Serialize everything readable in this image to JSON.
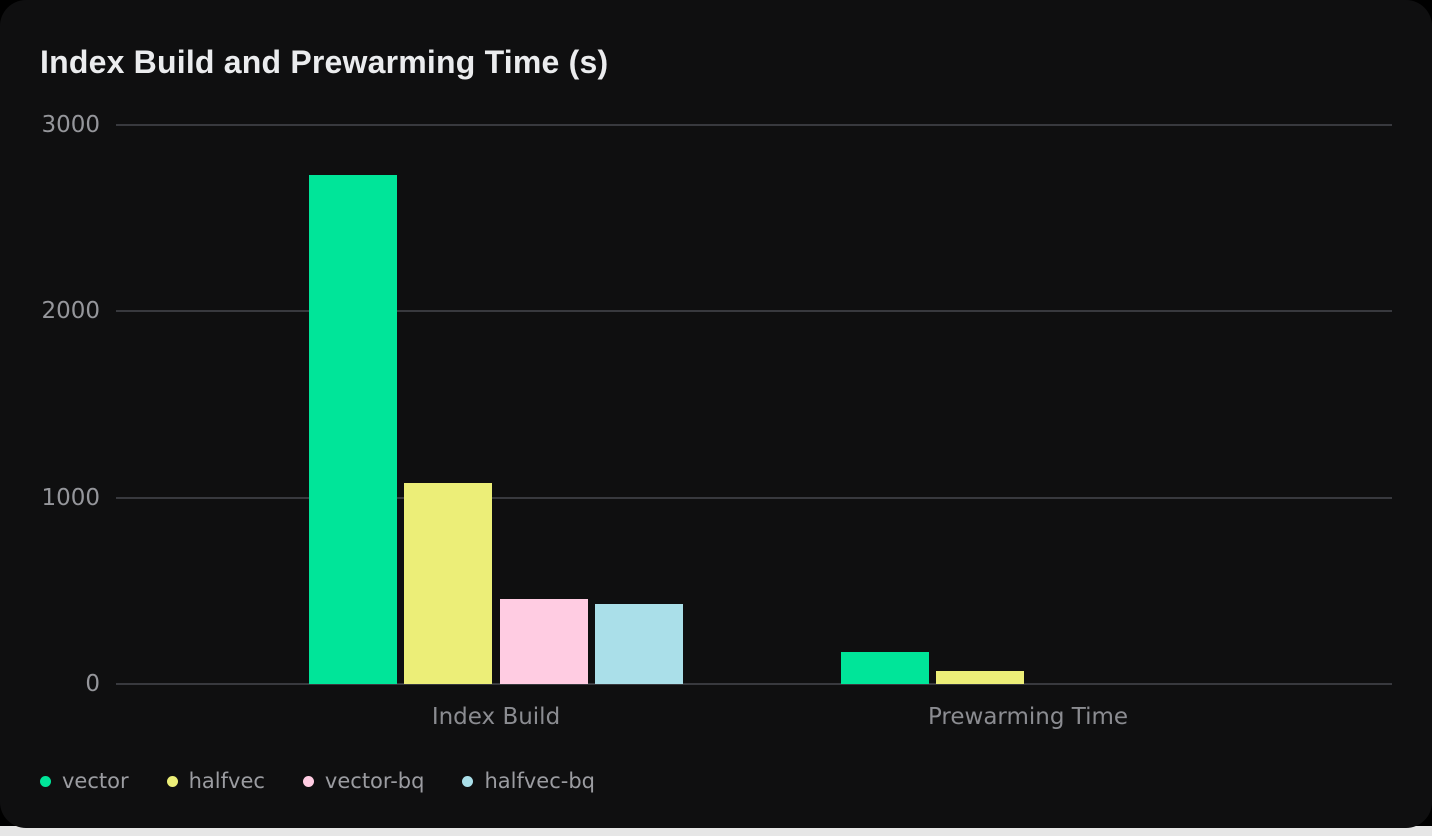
{
  "chart_data": {
    "type": "bar",
    "title": "Index Build and Prewarming Time (s)",
    "categories": [
      "Index Build",
      "Prewarming Time"
    ],
    "series": [
      {
        "name": "vector",
        "color": "#00e599",
        "values": [
          2730,
          170
        ]
      },
      {
        "name": "halfvec",
        "color": "#ecee78",
        "values": [
          1080,
          70
        ]
      },
      {
        "name": "vector-bq",
        "color": "#ffcce2",
        "values": [
          455,
          0
        ]
      },
      {
        "name": "halfvec-bq",
        "color": "#aadfe9",
        "values": [
          430,
          0
        ]
      }
    ],
    "xlabel": "",
    "ylabel": "",
    "yticks": [
      0,
      1000,
      2000,
      3000
    ],
    "ylim": [
      0,
      3000
    ],
    "grid": true,
    "legend_position": "bottom-left"
  },
  "theme": {
    "page_bg": "#000000",
    "page_strip": "#e6e6e6",
    "card_bg": "#0f0f10",
    "title_color": "#ebecee",
    "grid_color": "#38393e",
    "tick_color": "#95969b",
    "category_color": "#8b8c91",
    "legend_color": "#9b9ca1"
  }
}
